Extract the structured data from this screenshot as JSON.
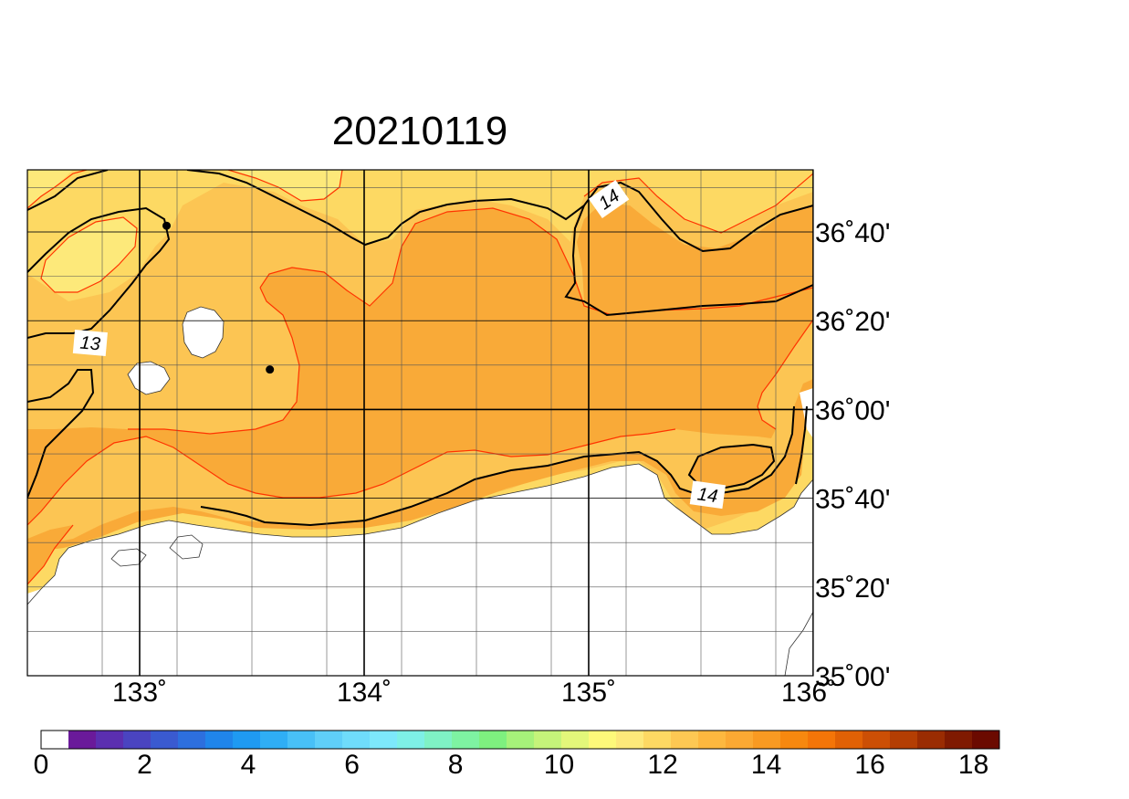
{
  "title": "20210119",
  "lon_labels": [
    {
      "value": 133,
      "text": "133˚"
    },
    {
      "value": 134,
      "text": "134˚"
    },
    {
      "value": 135,
      "text": "135˚"
    },
    {
      "value": 136,
      "text": "136˚"
    }
  ],
  "lat_labels": [
    {
      "value": 36.6667,
      "text": "36˚40'"
    },
    {
      "value": 36.3333,
      "text": "36˚20'"
    },
    {
      "value": 36.0,
      "text": "36˚00'"
    },
    {
      "value": 35.6667,
      "text": "35˚40'"
    },
    {
      "value": 35.3333,
      "text": "35˚20'"
    },
    {
      "value": 35.0,
      "text": "35˚00'"
    }
  ],
  "map_extent": {
    "lon": [
      132.5,
      136.0
    ],
    "lat": [
      35.0,
      36.9
    ]
  },
  "contour_labels": [
    {
      "text": "13",
      "lon": 132.78,
      "lat": 36.25,
      "rotate": 5
    },
    {
      "text": "14",
      "lon": 135.09,
      "lat": 36.79,
      "rotate": -35
    },
    {
      "text": "14",
      "lon": 135.53,
      "lat": 35.68,
      "rotate": 8
    }
  ],
  "point_markers": [
    {
      "name": "marker-north",
      "lon": 133.12,
      "lat": 36.69
    },
    {
      "name": "marker-oki",
      "lon": 133.58,
      "lat": 36.15
    }
  ],
  "colorbar": {
    "min": 0,
    "max": 18.5,
    "tick_labels": [
      "0",
      "2",
      "4",
      "6",
      "8",
      "10",
      "12",
      "14",
      "16",
      "18"
    ],
    "colors": [
      "#ffffff",
      "#6a1a9a",
      "#5b2fb0",
      "#4a44c0",
      "#3a5ad0",
      "#2d6fde",
      "#2085ea",
      "#1f9af2",
      "#2faef5",
      "#48c0f7",
      "#5fcff9",
      "#6fdcfb",
      "#7de8fb",
      "#7ef0e6",
      "#7ff2c5",
      "#7ef3a2",
      "#7ef07f",
      "#a6f27a",
      "#c5f47a",
      "#e3f77a",
      "#fdf97a",
      "#fde97a",
      "#fdd963",
      "#fdc853",
      "#fdb83f",
      "#fba933",
      "#f99a22",
      "#f7880f",
      "#f47508",
      "#e16105",
      "#cc4f05",
      "#b43e03",
      "#9a2c02",
      "#7f1a01",
      "#6b0a00"
    ]
  },
  "colors": {
    "sea_light": "#fdd963",
    "sea_mid": "#fcc553",
    "sea_warm": "#f9aa38",
    "sea_pale": "#fde97a",
    "land": "#ffffff",
    "contour_black": "#000000",
    "contour_red": "#ff3300"
  }
}
